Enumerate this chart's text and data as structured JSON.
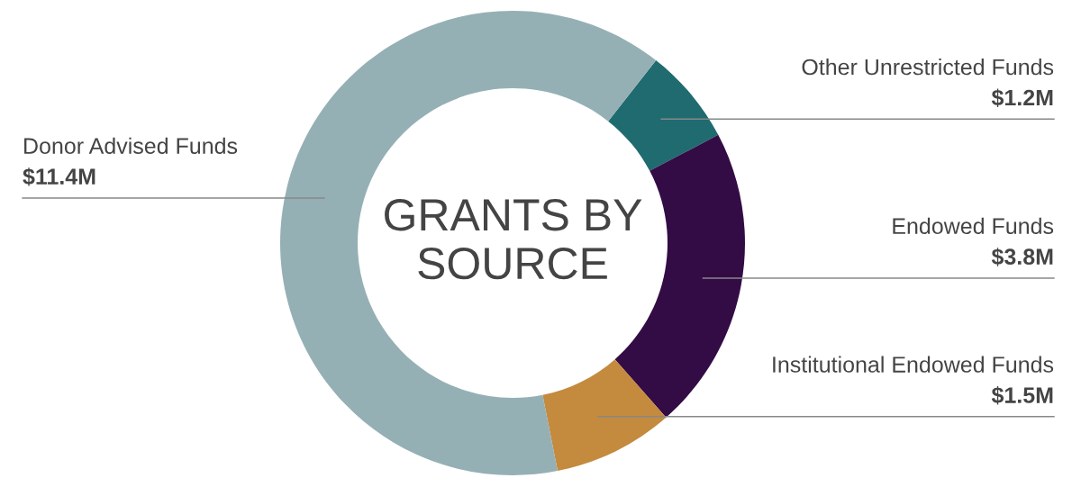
{
  "chart_data": {
    "type": "donut",
    "title": "GRANTS BY SOURCE",
    "categories": [
      "Other Unrestricted Funds",
      "Endowed Funds",
      "Institutional Endowed Funds",
      "Donor Advised Funds"
    ],
    "values": [
      1.2,
      3.8,
      1.5,
      11.4
    ],
    "value_labels": [
      "$1.2M",
      "$3.8M",
      "$1.5M",
      "$11.4M"
    ],
    "colors": [
      "#1f6b70",
      "#330b45",
      "#c48a3e",
      "#95b0b4"
    ],
    "legend": false
  }
}
